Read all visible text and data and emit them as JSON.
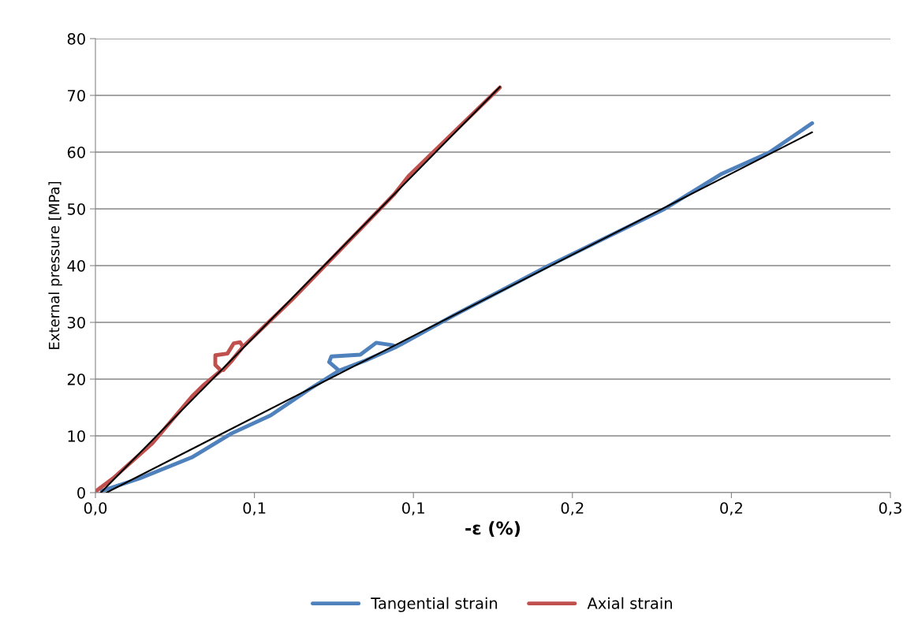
{
  "chart_data": {
    "type": "line",
    "xlabel": "-ε (%)",
    "ylabel": "External pressure [MPa]",
    "xlim": [
      0,
      0.25
    ],
    "ylim": [
      0,
      80
    ],
    "xticks": [
      {
        "value": 0,
        "label": "0,0"
      },
      {
        "value": 0.05,
        "label": "0,1"
      },
      {
        "value": 0.1,
        "label": "0,1"
      },
      {
        "value": 0.15,
        "label": "0,2"
      },
      {
        "value": 0.2,
        "label": "0,2"
      },
      {
        "value": 0.25,
        "label": "0,3"
      }
    ],
    "yticks": [
      0,
      10,
      20,
      30,
      40,
      50,
      60,
      70,
      80
    ],
    "grid": "y",
    "legend": "bottom",
    "marker": "none",
    "line_style": "solid",
    "series": [
      {
        "name": "Tangential strain",
        "color": "#4f81bd",
        "x": [
          0.002,
          0.0139,
          0.0303,
          0.0427,
          0.0551,
          0.0675,
          0.0766,
          0.0735,
          0.0742,
          0.0833,
          0.0883,
          0.0933,
          0.0947,
          0.085,
          0.0766,
          0.085,
          0.0947,
          0.1126,
          0.1426,
          0.179,
          0.1967,
          0.2118,
          0.2254
        ],
        "values": [
          0.3,
          2.5,
          6.2,
          10.4,
          13.6,
          18.3,
          21.5,
          23.0,
          24.0,
          24.3,
          26.4,
          26.0,
          25.7,
          23.3,
          21.5,
          23.3,
          25.7,
          31.2,
          40,
          50,
          56.1,
          59.9,
          65.1
        ]
      },
      {
        "name": "Axial strain",
        "color": "#c0504d",
        "x": [
          0,
          0.0055,
          0.0179,
          0.0303,
          0.0337,
          0.0395,
          0.0377,
          0.0377,
          0.0415,
          0.0435,
          0.0455,
          0.0464,
          0.043,
          0.0402,
          0.043,
          0.0464,
          0.0618,
          0.094,
          0.0985,
          0.1272
        ],
        "values": [
          0.2,
          2.5,
          8.7,
          16.9,
          18.8,
          21.5,
          22.5,
          24.2,
          24.5,
          26.3,
          26.5,
          25.7,
          23.3,
          21.6,
          23.4,
          25.7,
          34,
          52.6,
          55.8,
          71.4
        ]
      },
      {
        "type": "line",
        "color": "#000000",
        "x": [
          0.0035,
          0.2254
        ],
        "values": [
          0,
          63.5
        ]
      },
      {
        "type": "line",
        "color": "#000000",
        "x": [
          0.0017,
          0.1272
        ],
        "values": [
          0,
          71.5
        ]
      }
    ]
  }
}
